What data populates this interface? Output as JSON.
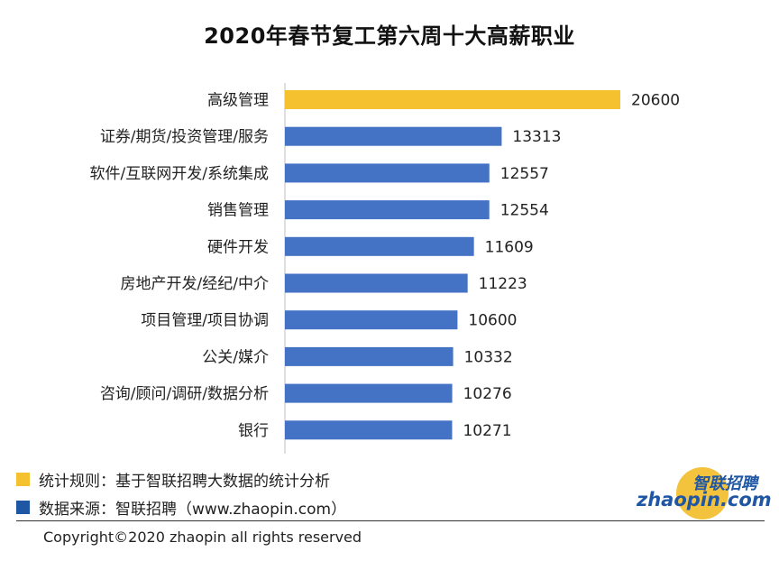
{
  "chart_data": {
    "type": "bar",
    "orientation": "horizontal",
    "title": "2020年春节复工第六周十大高薪职业",
    "categories": [
      "高级管理",
      "证券/期货/投资管理/服务",
      "软件/互联网开发/系统集成",
      "销售管理",
      "硬件开发",
      "房地产开发/经纪/中介",
      "项目管理/项目协调",
      "公关/媒介",
      "咨询/顾问/调研/数据分析",
      "银行"
    ],
    "values": [
      20600,
      13313,
      12557,
      12554,
      11609,
      11223,
      10600,
      10332,
      10276,
      10271
    ],
    "highlight_color": "#f5c12f",
    "bar_color": "#4472c4",
    "grid": false,
    "data_labels": true
  },
  "legend": {
    "rule_text": "统计规则：基于智联招聘大数据的统计分析",
    "rule_color": "#f5c12f",
    "source_text": "数据来源：智联招聘（www.zhaopin.com）",
    "source_color": "#1f57a5"
  },
  "logo": {
    "cn": "智联招聘",
    "en": "zhaopin.com"
  },
  "copyright": "Copyright©2020 zhaopin all rights reserved"
}
